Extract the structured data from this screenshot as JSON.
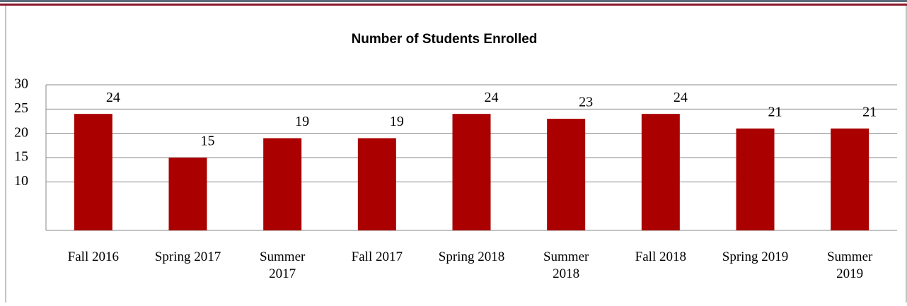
{
  "chart_data": {
    "type": "bar",
    "title": "Number of Students Enrolled",
    "categories": [
      "Fall 2016",
      "Spring 2017",
      "Summer 2017",
      "Fall 2017",
      "Spring 2018",
      "Summer 2018",
      "Fall 2018",
      "Spring 2019",
      "Summer 2019"
    ],
    "values": [
      24,
      15,
      19,
      19,
      24,
      23,
      24,
      21,
      21
    ],
    "color": "#aa0000",
    "ylim": [
      0,
      30
    ],
    "yticks": [
      10,
      15,
      20,
      25,
      30
    ],
    "grid": true
  }
}
